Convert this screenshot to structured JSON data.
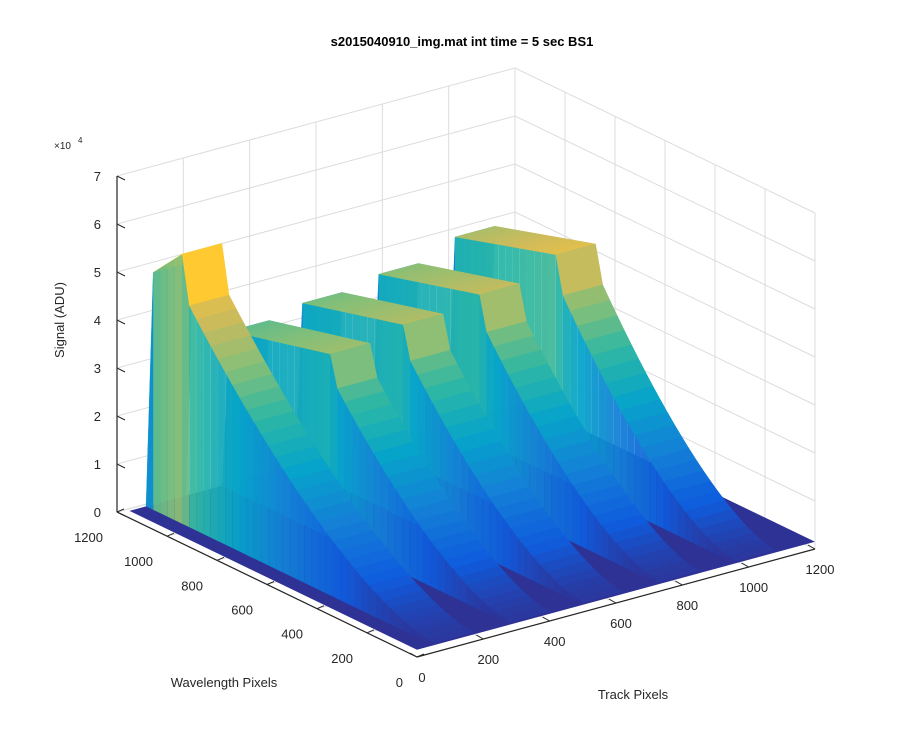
{
  "chart_data": {
    "type": "surface3d",
    "title": "s2015040910_img.mat int time = 5 sec   BS1",
    "xlabel": "Track Pixels",
    "ylabel": "Wavelength Pixels",
    "zlabel": "Signal (ADU)",
    "z_exponent_label": "× 10^4",
    "z_exponent_base": "×10",
    "z_exponent_power": "4",
    "xlim": [
      0,
      1200
    ],
    "ylim": [
      0,
      1200
    ],
    "zlim": [
      0,
      7
    ],
    "x_ticks": [
      "0",
      "200",
      "400",
      "600",
      "800",
      "1000",
      "1200"
    ],
    "y_ticks": [
      "0",
      "200",
      "400",
      "600",
      "800",
      "1000",
      "1200"
    ],
    "z_ticks": [
      "0",
      "1",
      "2",
      "3",
      "4",
      "5",
      "6",
      "7"
    ],
    "grid": true,
    "colormap": "parula",
    "colors": [
      "#352a87",
      "#0f5cdd",
      "#1481d6",
      "#06a4ca",
      "#2eb7a4",
      "#87bf77",
      "#d1bb59",
      "#fec832",
      "#f9fb0e"
    ],
    "series": [
      {
        "track_center": 110,
        "peak_signal_x1e4": 5.8,
        "plateau_end_wavelength": 1000
      },
      {
        "track_center": 340,
        "peak_signal_x1e4": 4.0,
        "plateau_end_wavelength": 700
      },
      {
        "track_center": 560,
        "peak_signal_x1e4": 4.2,
        "plateau_end_wavelength": 700
      },
      {
        "track_center": 790,
        "peak_signal_x1e4": 4.4,
        "plateau_end_wavelength": 700
      },
      {
        "track_center": 1020,
        "peak_signal_x1e4": 4.8,
        "plateau_end_wavelength": 700
      }
    ]
  }
}
